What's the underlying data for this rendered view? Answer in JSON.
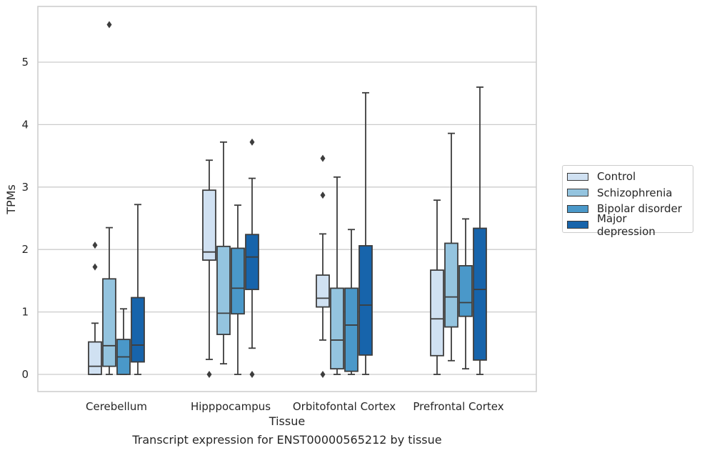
{
  "chart_data": {
    "type": "boxplot",
    "caption": "Transcript expression for ENST00000565212 by tissue",
    "xlabel": "Tissue",
    "ylabel": "TPMs",
    "ylim": [
      -0.28,
      5.88
    ],
    "yticks": [
      0,
      1,
      2,
      3,
      4,
      5
    ],
    "grid": true,
    "legend_position": "right",
    "categories": [
      "Cerebellum",
      "Hipppocampus",
      "Orbitofontal Cortex",
      "Prefrontal Cortex"
    ],
    "series": [
      {
        "name": "Control",
        "color": "#d0e1f2",
        "boxes": [
          {
            "whislo": 0.0,
            "q1": 0.0,
            "med": 0.13,
            "q3": 0.52,
            "whishi": 0.82,
            "fliers": [
              1.72,
              2.07
            ]
          },
          {
            "whislo": 0.24,
            "q1": 1.83,
            "med": 1.96,
            "q3": 2.95,
            "whishi": 3.43,
            "fliers": [
              0.0
            ]
          },
          {
            "whislo": 0.55,
            "q1": 1.08,
            "med": 1.22,
            "q3": 1.59,
            "whishi": 2.25,
            "fliers": [
              0.0,
              2.87,
              3.46
            ]
          },
          {
            "whislo": 0.0,
            "q1": 0.3,
            "med": 0.89,
            "q3": 1.67,
            "whishi": 2.79,
            "fliers": []
          }
        ]
      },
      {
        "name": "Schizophrenia",
        "color": "#94c4df",
        "boxes": [
          {
            "whislo": 0.0,
            "q1": 0.13,
            "med": 0.46,
            "q3": 1.53,
            "whishi": 2.35,
            "fliers": [
              5.6
            ]
          },
          {
            "whislo": 0.17,
            "q1": 0.64,
            "med": 0.98,
            "q3": 2.05,
            "whishi": 3.72,
            "fliers": []
          },
          {
            "whislo": 0.0,
            "q1": 0.09,
            "med": 0.55,
            "q3": 1.38,
            "whishi": 3.16,
            "fliers": []
          },
          {
            "whislo": 0.22,
            "q1": 0.76,
            "med": 1.24,
            "q3": 2.1,
            "whishi": 3.86,
            "fliers": []
          }
        ]
      },
      {
        "name": "Bipolar disorder",
        "color": "#4a98c9",
        "boxes": [
          {
            "whislo": 0.0,
            "q1": 0.0,
            "med": 0.28,
            "q3": 0.56,
            "whishi": 1.05,
            "fliers": []
          },
          {
            "whislo": 0.0,
            "q1": 0.97,
            "med": 1.38,
            "q3": 2.02,
            "whishi": 2.71,
            "fliers": []
          },
          {
            "whislo": 0.0,
            "q1": 0.05,
            "med": 0.79,
            "q3": 1.38,
            "whishi": 2.32,
            "fliers": []
          },
          {
            "whislo": 0.09,
            "q1": 0.93,
            "med": 1.15,
            "q3": 1.74,
            "whishi": 2.49,
            "fliers": []
          }
        ]
      },
      {
        "name": "Major depression",
        "color": "#1764ab",
        "boxes": [
          {
            "whislo": 0.0,
            "q1": 0.2,
            "med": 0.47,
            "q3": 1.23,
            "whishi": 2.72,
            "fliers": []
          },
          {
            "whislo": 0.42,
            "q1": 1.36,
            "med": 1.88,
            "q3": 2.24,
            "whishi": 3.14,
            "fliers": [
              0.0,
              3.72
            ]
          },
          {
            "whislo": 0.0,
            "q1": 0.31,
            "med": 1.11,
            "q3": 2.06,
            "whishi": 4.51,
            "fliers": []
          },
          {
            "whislo": 0.0,
            "q1": 0.23,
            "med": 1.36,
            "q3": 2.34,
            "whishi": 4.6,
            "fliers": []
          }
        ]
      }
    ]
  }
}
